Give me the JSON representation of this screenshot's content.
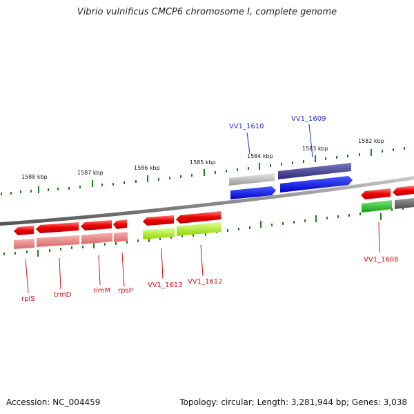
{
  "title": "Vibrio vulnificus CMCP6 chromosome I, complete genome",
  "footer": {
    "accession_label": "Accession: NC_004459",
    "summary_label": "Topology: circular; Length: 3,281,944 bp; Genes: 3,038"
  },
  "colors": {
    "backbone": "#8a8a8a",
    "tick": "#1e7a1e",
    "forward_label": "#1a2fd0",
    "reverse_label": "#d01010"
  },
  "ruler": {
    "kbp_labels": [
      "1588 kbp",
      "1587 kbp",
      "1586 kbp",
      "1585 kbp",
      "1584 kbp",
      "1583 kbp",
      "1582 kbp"
    ]
  },
  "genes": {
    "forward_labels": [
      "VV1_1610",
      "VV1_1609"
    ],
    "reverse_labels": [
      "rplS",
      "trmD",
      "rimM",
      "rpsP",
      "VV1_1613",
      "VV1_1612",
      "VV1_1608"
    ]
  }
}
